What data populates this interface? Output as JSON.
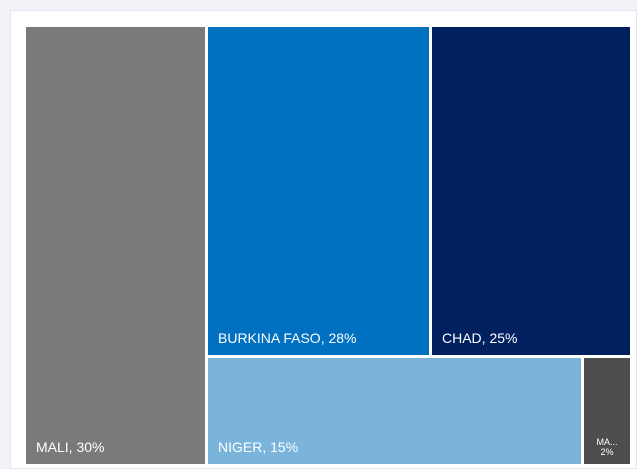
{
  "chart_data": {
    "type": "treemap",
    "title": "",
    "items": [
      {
        "name": "MALI",
        "value": 30,
        "label": "MALI, 30%",
        "color": "#7a7a7a"
      },
      {
        "name": "BURKINA FASO",
        "value": 28,
        "label": "BURKINA FASO, 28%",
        "color": "#0070c0"
      },
      {
        "name": "CHAD",
        "value": 25,
        "label": "CHAD, 25%",
        "color": "#002060"
      },
      {
        "name": "NIGER",
        "value": 15,
        "label": "NIGER, 15%",
        "color": "#7ab4db"
      },
      {
        "name": "MA...",
        "value": 2,
        "label_name": "MA...",
        "label_value": "2%",
        "color": "#4d4d4d"
      }
    ]
  }
}
